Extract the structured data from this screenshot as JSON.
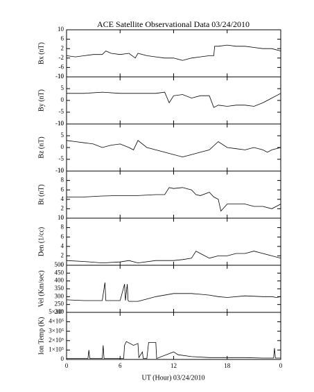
{
  "chart_data": [
    {
      "type": "line",
      "title": "ACE Satellite Observational Data   03/24/2010",
      "ylabel": "Bx (nT)",
      "color": "#000000",
      "x": [
        0,
        1,
        2,
        3,
        4,
        4.4,
        5,
        6,
        7,
        7.7,
        8,
        9,
        10,
        11,
        12,
        13,
        14,
        15,
        16,
        16.5,
        16.6,
        17,
        18,
        19,
        20,
        21,
        22,
        23,
        24
      ],
      "values": [
        -1,
        -1.5,
        -1,
        -0.5,
        -0.5,
        1,
        0,
        -0.5,
        0,
        -2,
        0,
        -1,
        -1.5,
        -2,
        -2,
        -3,
        -2,
        -1.5,
        -1,
        -1,
        3,
        3,
        3.5,
        3,
        3,
        2.5,
        2,
        2,
        1
      ],
      "ylim": [
        -10,
        10
      ],
      "yticks": [
        -10,
        -6,
        -2,
        2,
        6,
        10
      ]
    },
    {
      "type": "line",
      "ylabel": "By (nT)",
      "color": "#000000",
      "x": [
        0,
        2,
        4,
        6,
        8,
        10,
        11,
        11.5,
        12,
        13,
        14,
        15,
        16,
        16.5,
        17,
        18,
        19,
        20,
        21,
        22,
        23,
        24
      ],
      "values": [
        3,
        3,
        3.5,
        3,
        3,
        3,
        3.5,
        -1,
        2,
        2.5,
        1,
        2,
        2,
        -3,
        -2,
        -2.5,
        -2,
        -2,
        -2.5,
        -1,
        1,
        3
      ],
      "ylim": [
        -10,
        10
      ],
      "yticks": [
        -10,
        -5,
        0,
        5,
        10
      ]
    },
    {
      "type": "line",
      "ylabel": "Bz (nT)",
      "color": "#000000",
      "x": [
        0,
        1,
        2,
        3,
        4,
        5,
        6,
        7,
        7.5,
        8,
        9,
        10,
        11,
        12,
        13,
        14,
        15,
        16,
        17,
        18,
        19,
        20,
        21,
        22,
        22.5,
        23,
        24
      ],
      "values": [
        3,
        2.5,
        2,
        1.5,
        0,
        1,
        1.5,
        0,
        -1,
        3,
        0,
        -1,
        -2,
        -3,
        -4,
        -3,
        -2,
        -1,
        2.5,
        0,
        -0.5,
        -1,
        0,
        -1,
        -2,
        -1,
        0
      ],
      "ylim": [
        -10,
        10
      ],
      "yticks": [
        -10,
        -5,
        0,
        5,
        10
      ]
    },
    {
      "type": "line",
      "ylabel": "Bt (nT)",
      "color": "#000000",
      "x": [
        0,
        2,
        4,
        6,
        8,
        10,
        11,
        11.5,
        12,
        13,
        14,
        14.5,
        15,
        16,
        16.5,
        17,
        17.3,
        18,
        19,
        20,
        21,
        22,
        23,
        24
      ],
      "values": [
        4.5,
        4.5,
        4.7,
        4.8,
        4.8,
        5,
        5,
        6.5,
        6.3,
        6.5,
        6,
        5,
        4.8,
        5.5,
        4.5,
        4,
        1.5,
        3,
        3,
        3,
        2.5,
        2.5,
        2,
        3
      ],
      "ylim": [
        0,
        10
      ],
      "yticks": [
        0,
        2,
        4,
        6,
        8,
        10
      ]
    },
    {
      "type": "line",
      "ylabel": "Den (1/cc)",
      "color": "#000000",
      "x": [
        0,
        2,
        4,
        6,
        7,
        8,
        10,
        12,
        13,
        14,
        14.5,
        15,
        16,
        17,
        18,
        19,
        20,
        21,
        22,
        23,
        24
      ],
      "values": [
        1,
        0.8,
        0.5,
        0.7,
        1,
        0.5,
        1,
        1,
        1.2,
        1.5,
        3,
        2.5,
        1.5,
        2,
        2,
        2.5,
        2.5,
        3,
        2.5,
        2,
        1.5
      ],
      "ylim": [
        0,
        10
      ],
      "yticks": [
        0,
        2,
        4,
        6,
        8,
        10
      ]
    },
    {
      "type": "line",
      "ylabel": "Vel (Km/sec)",
      "color": "#000000",
      "x": [
        0,
        2,
        4,
        4.3,
        4.4,
        6,
        6.5,
        6.6,
        6.8,
        6.9,
        7,
        8,
        9,
        10,
        12,
        14,
        15,
        16,
        17,
        18,
        20,
        22,
        23,
        23.5,
        24
      ],
      "values": [
        280,
        275,
        275,
        390,
        275,
        275,
        380,
        275,
        380,
        275,
        270,
        270,
        285,
        300,
        320,
        320,
        315,
        310,
        300,
        295,
        305,
        300,
        300,
        295,
        300
      ],
      "ylim": [
        200,
        500
      ],
      "yticks": [
        200,
        250,
        300,
        350,
        400,
        450,
        500
      ]
    },
    {
      "type": "line",
      "ylabel": "Ion Temp (K)",
      "xlabel": "UT (Hour)  03/24/2010",
      "color": "#000000",
      "x": [
        0,
        2.4,
        2.5,
        2.6,
        4,
        4.1,
        4.2,
        6.4,
        6.5,
        6.7,
        7.5,
        8,
        8.1,
        8.5,
        8.6,
        9,
        9.2,
        10,
        10.1,
        12,
        12.5,
        14,
        16,
        18,
        20,
        22,
        23.2,
        23.3,
        23.4,
        24
      ],
      "values": [
        10000,
        10000,
        100000,
        10000,
        10000,
        150000,
        10000,
        10000,
        150000,
        190000,
        150000,
        170000,
        20000,
        80000,
        10000,
        10000,
        180000,
        180000,
        10000,
        80000,
        50000,
        30000,
        20000,
        20000,
        20000,
        15000,
        15000,
        120000,
        15000,
        15000
      ],
      "ylim": [
        0,
        500000
      ],
      "yticks": [
        0,
        {
          "value": 100000,
          "label": "1×10⁵"
        },
        {
          "value": 200000,
          "label": "2×10⁵"
        },
        {
          "value": 300000,
          "label": "3×10⁵"
        },
        {
          "value": 400000,
          "label": "4×10⁵"
        },
        {
          "value": 500000,
          "label": "5×10⁵"
        }
      ],
      "xlim": [
        0,
        24
      ],
      "xticks": [
        0,
        6,
        12,
        18,
        {
          "value": 24,
          "label": "0"
        }
      ]
    }
  ]
}
